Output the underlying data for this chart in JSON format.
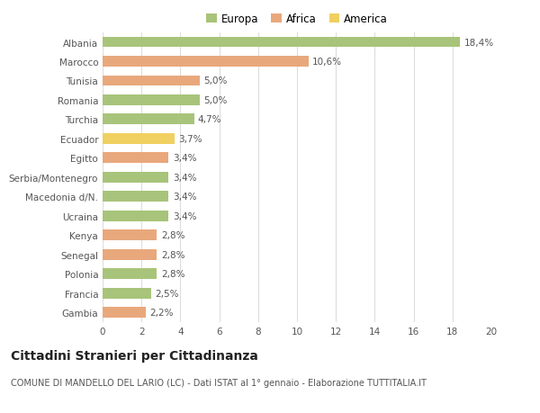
{
  "categories": [
    "Albania",
    "Marocco",
    "Tunisia",
    "Romania",
    "Turchia",
    "Ecuador",
    "Egitto",
    "Serbia/Montenegro",
    "Macedonia d/N.",
    "Ucraina",
    "Kenya",
    "Senegal",
    "Polonia",
    "Francia",
    "Gambia"
  ],
  "values": [
    18.4,
    10.6,
    5.0,
    5.0,
    4.7,
    3.7,
    3.4,
    3.4,
    3.4,
    3.4,
    2.8,
    2.8,
    2.8,
    2.5,
    2.2
  ],
  "labels": [
    "18,4%",
    "10,6%",
    "5,0%",
    "5,0%",
    "4,7%",
    "3,7%",
    "3,4%",
    "3,4%",
    "3,4%",
    "3,4%",
    "2,8%",
    "2,8%",
    "2,8%",
    "2,5%",
    "2,2%"
  ],
  "continent": [
    "Europa",
    "Africa",
    "Africa",
    "Europa",
    "Europa",
    "America",
    "Africa",
    "Europa",
    "Europa",
    "Europa",
    "Africa",
    "Africa",
    "Europa",
    "Europa",
    "Africa"
  ],
  "colors": {
    "Europa": "#a8c47a",
    "Africa": "#e8a87c",
    "America": "#f0d060"
  },
  "xlim": [
    0,
    20
  ],
  "xticks": [
    0,
    2,
    4,
    6,
    8,
    10,
    12,
    14,
    16,
    18,
    20
  ],
  "title": "Cittadini Stranieri per Cittadinanza",
  "subtitle": "COMUNE DI MANDELLO DEL LARIO (LC) - Dati ISTAT al 1° gennaio - Elaborazione TUTTITALIA.IT",
  "background_color": "#ffffff",
  "grid_color": "#dddddd",
  "bar_height": 0.55,
  "label_fontsize": 7.5,
  "tick_fontsize": 7.5,
  "title_fontsize": 10,
  "subtitle_fontsize": 7,
  "legend_fontsize": 8.5
}
